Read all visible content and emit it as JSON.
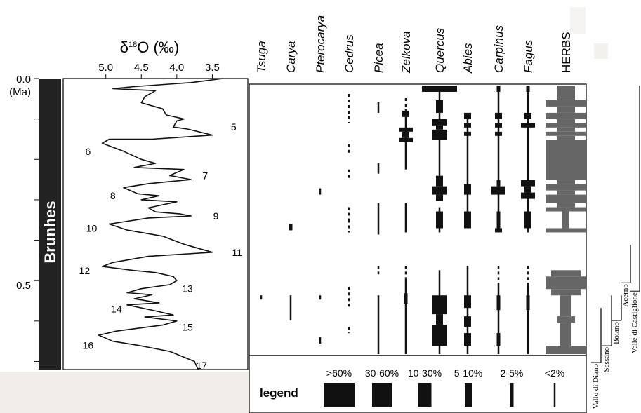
{
  "chart_data": {
    "type": "line",
    "oxygen_isotope_curve": {
      "xlabel": "δ18O (‰)",
      "x_ticks": [
        "5.0",
        "4.5",
        "4.0",
        "3.5"
      ],
      "xlim": [
        5.6,
        3.0
      ],
      "ylim": [
        0.0,
        0.72
      ],
      "y_unit_label": "(Ma)",
      "y_ticks": [
        "0.0",
        "0.5"
      ],
      "chron_label": "Brunhes",
      "points": [
        [
          3.35,
          0.0
        ],
        [
          3.8,
          0.01
        ],
        [
          4.6,
          0.02
        ],
        [
          4.9,
          0.025
        ],
        [
          4.3,
          0.03
        ],
        [
          4.45,
          0.045
        ],
        [
          4.5,
          0.06
        ],
        [
          4.2,
          0.075
        ],
        [
          4.15,
          0.09
        ],
        [
          3.9,
          0.1
        ],
        [
          4.0,
          0.105
        ],
        [
          4.05,
          0.12
        ],
        [
          3.85,
          0.125
        ],
        [
          3.5,
          0.14
        ],
        [
          4.35,
          0.15
        ],
        [
          4.95,
          0.15
        ],
        [
          5.05,
          0.16
        ],
        [
          4.75,
          0.18
        ],
        [
          4.5,
          0.2
        ],
        [
          4.3,
          0.21
        ],
        [
          4.6,
          0.22
        ],
        [
          3.9,
          0.225
        ],
        [
          4.1,
          0.24
        ],
        [
          3.8,
          0.25
        ],
        [
          4.4,
          0.26
        ],
        [
          4.75,
          0.27
        ],
        [
          4.55,
          0.285
        ],
        [
          4.25,
          0.29
        ],
        [
          4.5,
          0.3
        ],
        [
          4.0,
          0.305
        ],
        [
          4.4,
          0.32
        ],
        [
          4.3,
          0.33
        ],
        [
          3.95,
          0.335
        ],
        [
          3.8,
          0.34
        ],
        [
          4.4,
          0.345
        ],
        [
          4.95,
          0.36
        ],
        [
          4.7,
          0.375
        ],
        [
          4.2,
          0.39
        ],
        [
          3.9,
          0.41
        ],
        [
          3.5,
          0.43
        ],
        [
          4.4,
          0.44
        ],
        [
          4.9,
          0.455
        ],
        [
          5.05,
          0.465
        ],
        [
          4.6,
          0.475
        ],
        [
          4.3,
          0.48
        ],
        [
          4.05,
          0.49
        ],
        [
          4.0,
          0.5
        ],
        [
          4.1,
          0.51
        ],
        [
          4.5,
          0.52
        ],
        [
          4.7,
          0.53
        ],
        [
          4.35,
          0.535
        ],
        [
          4.6,
          0.545
        ],
        [
          4.25,
          0.555
        ],
        [
          4.7,
          0.56
        ],
        [
          4.3,
          0.575
        ],
        [
          4.05,
          0.585
        ],
        [
          4.45,
          0.59
        ],
        [
          4.0,
          0.6
        ],
        [
          4.2,
          0.61
        ],
        [
          4.85,
          0.625
        ],
        [
          5.1,
          0.635
        ],
        [
          4.9,
          0.65
        ],
        [
          4.55,
          0.66
        ],
        [
          4.1,
          0.675
        ],
        [
          3.75,
          0.7
        ],
        [
          3.7,
          0.72
        ]
      ],
      "stage_labels": [
        {
          "label": "5",
          "x": 3.2,
          "y": 0.12
        },
        {
          "label": "6",
          "x": 5.25,
          "y": 0.18
        },
        {
          "label": "7",
          "x": 3.6,
          "y": 0.24
        },
        {
          "label": "8",
          "x": 4.9,
          "y": 0.29
        },
        {
          "label": "9",
          "x": 3.45,
          "y": 0.34
        },
        {
          "label": "10",
          "x": 5.2,
          "y": 0.37
        },
        {
          "label": "11",
          "x": 3.15,
          "y": 0.43
        },
        {
          "label": "12",
          "x": 5.3,
          "y": 0.475
        },
        {
          "label": "13",
          "x": 3.85,
          "y": 0.52
        },
        {
          "label": "14",
          "x": 4.85,
          "y": 0.57
        },
        {
          "label": "15",
          "x": 3.85,
          "y": 0.615
        },
        {
          "label": "16",
          "x": 5.25,
          "y": 0.66
        },
        {
          "label": "17",
          "x": 3.65,
          "y": 0.71
        }
      ]
    },
    "pollen_diagram": {
      "taxa": [
        {
          "name": "Tsuga",
          "italic": true
        },
        {
          "name": "Carya",
          "italic": true
        },
        {
          "name": "Pterocarya",
          "italic": true
        },
        {
          "name": "Cedrus",
          "italic": true
        },
        {
          "name": "Picea",
          "italic": true
        },
        {
          "name": "Zelkova",
          "italic": true
        },
        {
          "name": "Quercus",
          "italic": true
        },
        {
          "name": "Abies",
          "italic": true
        },
        {
          "name": "Carpinus",
          "italic": true
        },
        {
          "name": "Fagus",
          "italic": true
        },
        {
          "name": "HERBS",
          "italic": false
        }
      ],
      "abundance_classes": [
        "<2%",
        "2-5%",
        "5-10%",
        "10-30%",
        "30-60%",
        ">60%"
      ],
      "legend_title": "legend",
      "legend_order": [
        ">60%",
        "30-60%",
        "10-30%",
        "5-10%",
        "2-5%",
        "<2%"
      ],
      "herbs_color": "#666666",
      "trees_color": "#111111",
      "segments": [
        {
          "taxon": "Tsuga",
          "from": 0.5,
          "to": 0.51,
          "class": "<2%"
        },
        {
          "taxon": "Carya",
          "from": 0.33,
          "to": 0.345,
          "class": "2-5%"
        },
        {
          "taxon": "Carya",
          "from": 0.5,
          "to": 0.56,
          "class": "<2%"
        },
        {
          "taxon": "Pterocarya",
          "from": 0.245,
          "to": 0.26,
          "class": "<2%"
        },
        {
          "taxon": "Pterocarya",
          "from": 0.5,
          "to": 0.51,
          "class": "<2%"
        },
        {
          "taxon": "Pterocarya",
          "from": 0.6,
          "to": 0.615,
          "class": "<2%"
        },
        {
          "taxon": "Cedrus",
          "from": 0.02,
          "to": 0.09,
          "class": "<2%",
          "dashed": true
        },
        {
          "taxon": "Cedrus",
          "from": 0.14,
          "to": 0.16,
          "class": "<2%",
          "dashed": true
        },
        {
          "taxon": "Cedrus",
          "from": 0.2,
          "to": 0.22,
          "class": "<2%",
          "dashed": true
        },
        {
          "taxon": "Cedrus",
          "from": 0.29,
          "to": 0.32,
          "class": "<2%",
          "dashed": true
        },
        {
          "taxon": "Cedrus",
          "from": 0.32,
          "to": 0.35,
          "class": "<2%",
          "dashed": true
        },
        {
          "taxon": "Cedrus",
          "from": 0.48,
          "to": 0.53,
          "class": "<2%",
          "dashed": true
        },
        {
          "taxon": "Cedrus",
          "from": 0.575,
          "to": 0.59,
          "class": "<2%",
          "dashed": true
        },
        {
          "taxon": "Picea",
          "from": 0.04,
          "to": 0.065,
          "class": "<2%"
        },
        {
          "taxon": "Picea",
          "from": 0.185,
          "to": 0.21,
          "class": "<2%"
        },
        {
          "taxon": "Picea",
          "from": 0.28,
          "to": 0.355,
          "class": "<2%"
        },
        {
          "taxon": "Picea",
          "from": 0.43,
          "to": 0.45,
          "class": "<2%",
          "dashed": true
        },
        {
          "taxon": "Picea",
          "from": 0.5,
          "to": 0.64,
          "class": "<2%"
        },
        {
          "taxon": "Zelkova",
          "from": 0.03,
          "to": 0.06,
          "class": "<2%",
          "dashed": true
        },
        {
          "taxon": "Zelkova",
          "from": 0.06,
          "to": 0.075,
          "class": "5-10%"
        },
        {
          "taxon": "Zelkova",
          "from": 0.075,
          "to": 0.2,
          "class": "<2%"
        },
        {
          "taxon": "Zelkova",
          "from": 0.1,
          "to": 0.11,
          "class": "10-30%"
        },
        {
          "taxon": "Zelkova",
          "from": 0.11,
          "to": 0.125,
          "class": "5-10%"
        },
        {
          "taxon": "Zelkova",
          "from": 0.125,
          "to": 0.135,
          "class": "10-30%"
        },
        {
          "taxon": "Zelkova",
          "from": 0.28,
          "to": 0.35,
          "class": "<2%"
        },
        {
          "taxon": "Zelkova",
          "from": 0.43,
          "to": 0.46,
          "class": "<2%",
          "dashed": true
        },
        {
          "taxon": "Zelkova",
          "from": 0.46,
          "to": 0.64,
          "class": "<2%"
        },
        {
          "taxon": "Zelkova",
          "from": 0.495,
          "to": 0.52,
          "class": "2-5%"
        },
        {
          "taxon": "Quercus",
          "from": 0.0,
          "to": 0.015,
          "class": ">60%"
        },
        {
          "taxon": "Quercus",
          "from": 0.015,
          "to": 0.035,
          "class": "<2%"
        },
        {
          "taxon": "Quercus",
          "from": 0.035,
          "to": 0.065,
          "class": "5-10%"
        },
        {
          "taxon": "Quercus",
          "from": 0.065,
          "to": 0.08,
          "class": "<2%"
        },
        {
          "taxon": "Quercus",
          "from": 0.08,
          "to": 0.095,
          "class": "10-30%"
        },
        {
          "taxon": "Quercus",
          "from": 0.095,
          "to": 0.105,
          "class": "5-10%"
        },
        {
          "taxon": "Quercus",
          "from": 0.105,
          "to": 0.13,
          "class": "10-30%"
        },
        {
          "taxon": "Quercus",
          "from": 0.13,
          "to": 0.215,
          "class": "<2%"
        },
        {
          "taxon": "Quercus",
          "from": 0.215,
          "to": 0.24,
          "class": "5-10%"
        },
        {
          "taxon": "Quercus",
          "from": 0.24,
          "to": 0.26,
          "class": "10-30%"
        },
        {
          "taxon": "Quercus",
          "from": 0.26,
          "to": 0.275,
          "class": "5-10%"
        },
        {
          "taxon": "Quercus",
          "from": 0.29,
          "to": 0.35,
          "class": "<2%"
        },
        {
          "taxon": "Quercus",
          "from": 0.3,
          "to": 0.34,
          "class": "5-10%"
        },
        {
          "taxon": "Quercus",
          "from": 0.44,
          "to": 0.64,
          "class": "<2%"
        },
        {
          "taxon": "Quercus",
          "from": 0.5,
          "to": 0.545,
          "class": "10-30%"
        },
        {
          "taxon": "Quercus",
          "from": 0.545,
          "to": 0.57,
          "class": "5-10%"
        },
        {
          "taxon": "Quercus",
          "from": 0.57,
          "to": 0.62,
          "class": "10-30%"
        },
        {
          "taxon": "Abies",
          "from": 0.065,
          "to": 0.08,
          "class": "5-10%"
        },
        {
          "taxon": "Abies",
          "from": 0.08,
          "to": 0.33,
          "class": "<2%"
        },
        {
          "taxon": "Abies",
          "from": 0.09,
          "to": 0.1,
          "class": "5-10%"
        },
        {
          "taxon": "Abies",
          "from": 0.11,
          "to": 0.12,
          "class": "5-10%"
        },
        {
          "taxon": "Abies",
          "from": 0.235,
          "to": 0.26,
          "class": "5-10%"
        },
        {
          "taxon": "Abies",
          "from": 0.3,
          "to": 0.34,
          "class": "5-10%"
        },
        {
          "taxon": "Abies",
          "from": 0.43,
          "to": 0.64,
          "class": "<2%"
        },
        {
          "taxon": "Abies",
          "from": 0.5,
          "to": 0.53,
          "class": "5-10%"
        },
        {
          "taxon": "Abies",
          "from": 0.55,
          "to": 0.575,
          "class": "5-10%"
        },
        {
          "taxon": "Abies",
          "from": 0.59,
          "to": 0.62,
          "class": "5-10%"
        },
        {
          "taxon": "Carpinus",
          "from": 0.0,
          "to": 0.015,
          "class": "2-5%"
        },
        {
          "taxon": "Carpinus",
          "from": 0.015,
          "to": 0.35,
          "class": "<2%"
        },
        {
          "taxon": "Carpinus",
          "from": 0.065,
          "to": 0.08,
          "class": "5-10%"
        },
        {
          "taxon": "Carpinus",
          "from": 0.09,
          "to": 0.1,
          "class": "5-10%"
        },
        {
          "taxon": "Carpinus",
          "from": 0.11,
          "to": 0.12,
          "class": "5-10%"
        },
        {
          "taxon": "Carpinus",
          "from": 0.225,
          "to": 0.24,
          "class": "2-5%"
        },
        {
          "taxon": "Carpinus",
          "from": 0.24,
          "to": 0.26,
          "class": "10-30%"
        },
        {
          "taxon": "Carpinus",
          "from": 0.3,
          "to": 0.34,
          "class": "2-5%"
        },
        {
          "taxon": "Carpinus",
          "from": 0.34,
          "to": 0.35,
          "class": "5-10%"
        },
        {
          "taxon": "Carpinus",
          "from": 0.43,
          "to": 0.47,
          "class": "<2%",
          "dashed": true
        },
        {
          "taxon": "Carpinus",
          "from": 0.47,
          "to": 0.64,
          "class": "<2%"
        },
        {
          "taxon": "Carpinus",
          "from": 0.5,
          "to": 0.535,
          "class": "2-5%"
        },
        {
          "taxon": "Carpinus",
          "from": 0.59,
          "to": 0.62,
          "class": "2-5%"
        },
        {
          "taxon": "Fagus",
          "from": 0.0,
          "to": 0.015,
          "class": "2-5%"
        },
        {
          "taxon": "Fagus",
          "from": 0.015,
          "to": 0.35,
          "class": "<2%"
        },
        {
          "taxon": "Fagus",
          "from": 0.065,
          "to": 0.08,
          "class": "5-10%"
        },
        {
          "taxon": "Fagus",
          "from": 0.09,
          "to": 0.1,
          "class": "10-30%"
        },
        {
          "taxon": "Fagus",
          "from": 0.225,
          "to": 0.24,
          "class": "10-30%"
        },
        {
          "taxon": "Fagus",
          "from": 0.24,
          "to": 0.255,
          "class": "5-10%"
        },
        {
          "taxon": "Fagus",
          "from": 0.255,
          "to": 0.27,
          "class": "10-30%"
        },
        {
          "taxon": "Fagus",
          "from": 0.3,
          "to": 0.34,
          "class": "5-10%"
        },
        {
          "taxon": "Fagus",
          "from": 0.43,
          "to": 0.47,
          "class": "<2%",
          "dashed": true
        },
        {
          "taxon": "Fagus",
          "from": 0.47,
          "to": 0.64,
          "class": "<2%"
        },
        {
          "taxon": "Fagus",
          "from": 0.5,
          "to": 0.535,
          "class": "2-5%"
        },
        {
          "taxon": "Herbs",
          "from": 0.0,
          "to": 0.035,
          "class": "10-30%"
        },
        {
          "taxon": "Herbs",
          "from": 0.035,
          "to": 0.05,
          "class": ">60%"
        },
        {
          "taxon": "Herbs",
          "from": 0.05,
          "to": 0.065,
          "class": "10-30%"
        },
        {
          "taxon": "Herbs",
          "from": 0.065,
          "to": 0.08,
          "class": ">60%"
        },
        {
          "taxon": "Herbs",
          "from": 0.08,
          "to": 0.09,
          "class": "10-30%"
        },
        {
          "taxon": "Herbs",
          "from": 0.09,
          "to": 0.1,
          "class": ">60%"
        },
        {
          "taxon": "Herbs",
          "from": 0.1,
          "to": 0.11,
          "class": "10-30%"
        },
        {
          "taxon": "Herbs",
          "from": 0.11,
          "to": 0.12,
          "class": ">60%"
        },
        {
          "taxon": "Herbs",
          "from": 0.12,
          "to": 0.13,
          "class": "10-30%"
        },
        {
          "taxon": "Herbs",
          "from": 0.13,
          "to": 0.225,
          "class": ">60%"
        },
        {
          "taxon": "Herbs",
          "from": 0.225,
          "to": 0.235,
          "class": "10-30%"
        },
        {
          "taxon": "Herbs",
          "from": 0.235,
          "to": 0.25,
          "class": ">60%"
        },
        {
          "taxon": "Herbs",
          "from": 0.25,
          "to": 0.26,
          "class": "10-30%"
        },
        {
          "taxon": "Herbs",
          "from": 0.26,
          "to": 0.28,
          "class": ">60%"
        },
        {
          "taxon": "Herbs",
          "from": 0.28,
          "to": 0.29,
          "class": "10-30%"
        },
        {
          "taxon": "Herbs",
          "from": 0.29,
          "to": 0.3,
          "class": ">60%"
        },
        {
          "taxon": "Herbs",
          "from": 0.3,
          "to": 0.34,
          "class": "2-5%"
        },
        {
          "taxon": "Herbs",
          "from": 0.34,
          "to": 0.35,
          "class": ">60%"
        },
        {
          "taxon": "Herbs",
          "from": 0.44,
          "to": 0.455,
          "class": "30-60%"
        },
        {
          "taxon": "Herbs",
          "from": 0.455,
          "to": 0.485,
          "class": ">60%"
        },
        {
          "taxon": "Herbs",
          "from": 0.485,
          "to": 0.5,
          "class": "30-60%"
        },
        {
          "taxon": "Herbs",
          "from": 0.5,
          "to": 0.55,
          "class": "5-10%"
        },
        {
          "taxon": "Herbs",
          "from": 0.55,
          "to": 0.565,
          "class": "10-30%"
        },
        {
          "taxon": "Herbs",
          "from": 0.565,
          "to": 0.62,
          "class": "5-10%"
        },
        {
          "taxon": "Herbs",
          "from": 0.62,
          "to": 0.64,
          "class": ">60%"
        }
      ]
    },
    "sites": [
      {
        "name": "Vallo di Diano",
        "from": 0.53,
        "to": 0.66
      },
      {
        "name": "Sessano",
        "from": 0.5,
        "to": 0.62
      },
      {
        "name": "Boiano",
        "from": 0.5,
        "to": 0.56
      },
      {
        "name": "Acerno",
        "from": 0.38,
        "to": 0.47,
        "dashed_from": 0.38,
        "dashed_to": 0.41
      },
      {
        "name": "Valle di Castiglione",
        "from": 0.0,
        "to": 0.49
      }
    ]
  }
}
